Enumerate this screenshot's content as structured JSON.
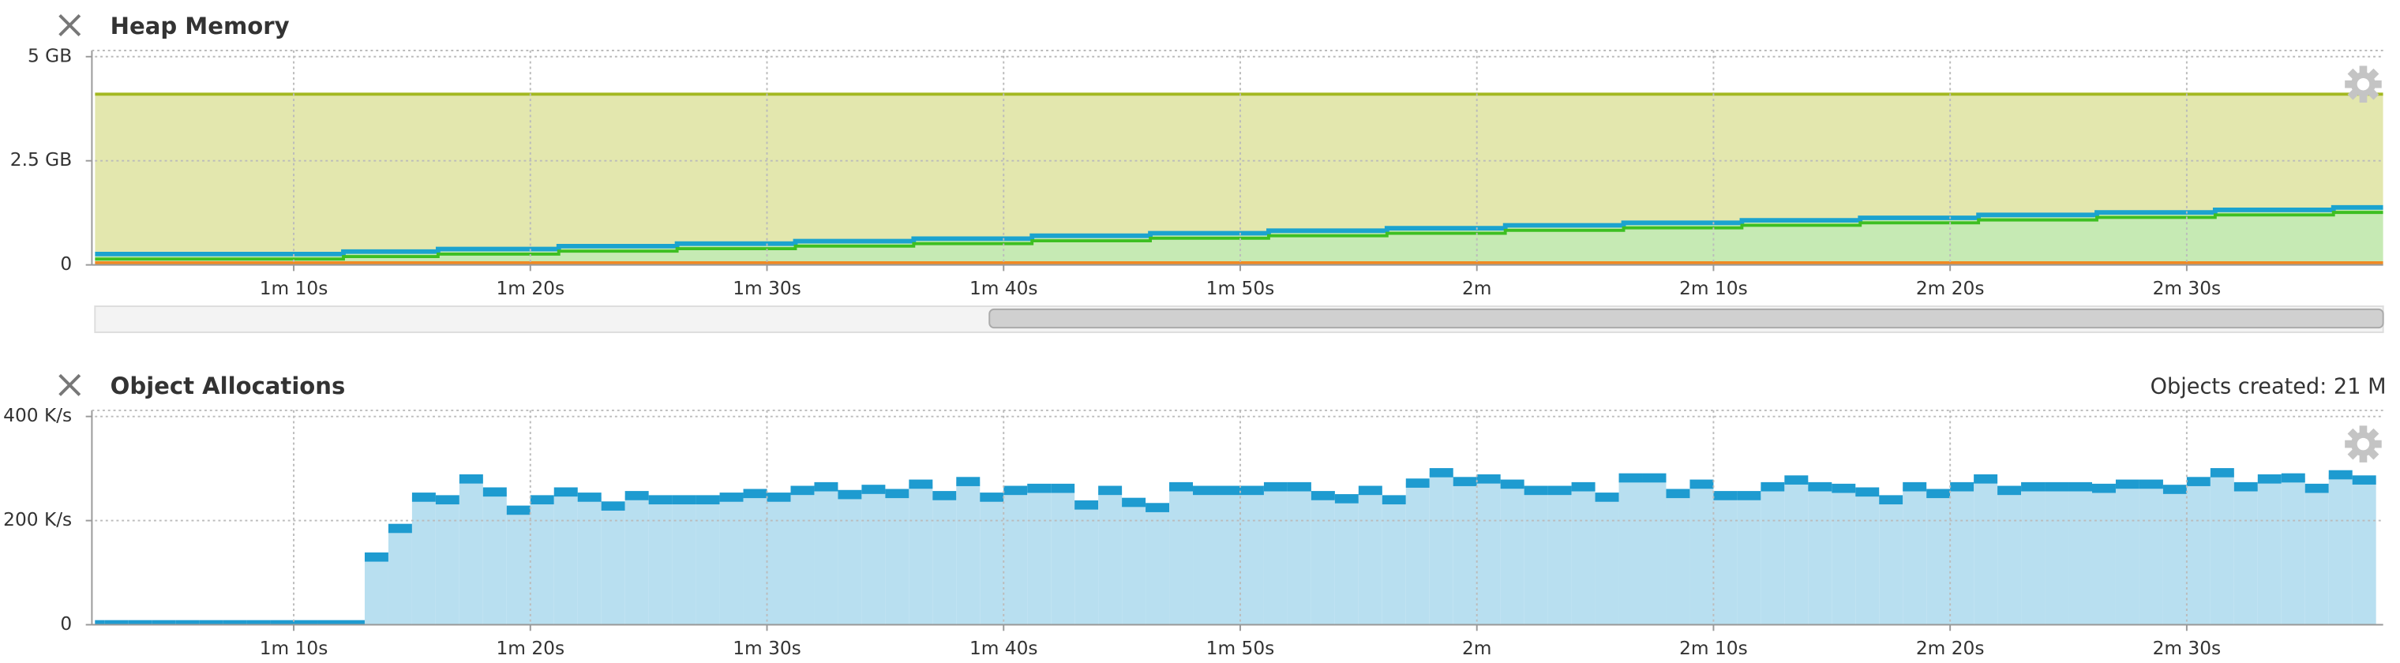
{
  "chart_data": [
    {
      "type": "step-area",
      "title": "Heap Memory",
      "x": [
        61.6,
        72.1,
        76.1,
        81.2,
        86.2,
        91.2,
        96.2,
        101.2,
        106.2,
        111.2,
        116.2,
        121.2,
        126.2,
        131.2,
        136.2,
        141.2,
        146.2,
        151.2,
        156.2,
        158.3
      ],
      "series": [
        {
          "color": "#a3b821",
          "area_color": "#e3e7ae",
          "values": [
            4.1,
            4.1,
            4.1,
            4.1,
            4.1,
            4.1,
            4.1,
            4.1,
            4.1,
            4.1,
            4.1,
            4.1,
            4.1,
            4.1,
            4.1,
            4.1,
            4.1,
            4.1,
            4.1,
            4.1
          ]
        },
        {
          "color": "#1ba3cf",
          "area_color": "#c6eab4",
          "values": [
            0.26,
            0.32,
            0.38,
            0.45,
            0.51,
            0.57,
            0.63,
            0.7,
            0.76,
            0.82,
            0.88,
            0.95,
            1.01,
            1.07,
            1.13,
            1.2,
            1.26,
            1.32,
            1.38,
            1.38
          ]
        },
        {
          "color": "#3dbf22",
          "values": [
            0.14,
            0.2,
            0.26,
            0.33,
            0.39,
            0.45,
            0.51,
            0.58,
            0.64,
            0.7,
            0.76,
            0.83,
            0.89,
            0.95,
            1.01,
            1.08,
            1.14,
            1.2,
            1.26,
            1.26
          ]
        },
        {
          "color": "#f08a24",
          "values": [
            0.05,
            0.05,
            0.05,
            0.05,
            0.05,
            0.05,
            0.05,
            0.05,
            0.05,
            0.05,
            0.05,
            0.05,
            0.05,
            0.05,
            0.05,
            0.05,
            0.05,
            0.05,
            0.05,
            0.05
          ]
        }
      ],
      "xlim": [
        61.6,
        158.3
      ],
      "xticks": [
        {
          "value": 70,
          "label": "1m 10s"
        },
        {
          "value": 80,
          "label": "1m 20s"
        },
        {
          "value": 90,
          "label": "1m 30s"
        },
        {
          "value": 100,
          "label": "1m 40s"
        },
        {
          "value": 110,
          "label": "1m 50s"
        },
        {
          "value": 120,
          "label": "2m"
        },
        {
          "value": 130,
          "label": "2m 10s"
        },
        {
          "value": 140,
          "label": "2m 20s"
        },
        {
          "value": 150,
          "label": "2m 30s"
        }
      ],
      "ylim": [
        0,
        5
      ],
      "yticks": [
        0,
        {
          "value": 2.5,
          "label": "2.5 GB"
        },
        {
          "value": 5,
          "label": "5 GB"
        }
      ],
      "grid": true
    },
    {
      "type": "histogram",
      "title": "Object Allocations",
      "summary": "Objects created: 21 M",
      "bins": [
        61,
        62,
        63,
        64,
        65,
        66,
        67,
        68,
        69,
        70,
        71,
        72,
        73,
        74,
        75,
        76,
        77,
        78,
        79,
        80,
        81,
        82,
        83,
        84,
        85,
        86,
        87,
        88,
        89,
        90,
        91,
        92,
        93,
        94,
        95,
        96,
        97,
        98,
        99,
        100,
        101,
        102,
        103,
        104,
        105,
        106,
        107,
        108,
        109,
        110,
        111,
        112,
        113,
        114,
        115,
        116,
        117,
        118,
        119,
        120,
        121,
        122,
        123,
        124,
        125,
        126,
        127,
        128,
        129,
        130,
        131,
        132,
        133,
        134,
        135,
        136,
        137,
        138,
        139,
        140,
        141,
        142,
        143,
        144,
        145,
        146,
        147,
        148,
        149,
        150,
        151,
        152,
        153,
        154,
        155,
        156,
        157,
        158
      ],
      "values": [
        0,
        0,
        0,
        0,
        0,
        0,
        0,
        0,
        0,
        0,
        0,
        0,
        130,
        185,
        245,
        240,
        280,
        255,
        220,
        240,
        255,
        245,
        228,
        248,
        240,
        240,
        240,
        245,
        252,
        245,
        258,
        265,
        250,
        260,
        252,
        270,
        248,
        275,
        245,
        258,
        262,
        262,
        230,
        258,
        235,
        225,
        265,
        258,
        258,
        258,
        265,
        265,
        248,
        242,
        258,
        240,
        272,
        292,
        275,
        280,
        270,
        258,
        258,
        265,
        245,
        282,
        282,
        252,
        270,
        248,
        248,
        265,
        278,
        265,
        262,
        255,
        240,
        265,
        252,
        265,
        280,
        258,
        265,
        265,
        265,
        262,
        270,
        270,
        260,
        275,
        292,
        265,
        280,
        282,
        262,
        288,
        278
      ],
      "color": "#b8dff0",
      "cap_color": "#1e9bd0",
      "xlim": [
        61.6,
        158.3
      ],
      "xticks": [
        {
          "value": 70,
          "label": "1m 10s"
        },
        {
          "value": 80,
          "label": "1m 20s"
        },
        {
          "value": 90,
          "label": "1m 30s"
        },
        {
          "value": 100,
          "label": "1m 40s"
        },
        {
          "value": 110,
          "label": "1m 50s"
        },
        {
          "value": 120,
          "label": "2m"
        },
        {
          "value": 130,
          "label": "2m 10s"
        },
        {
          "value": 140,
          "label": "2m 20s"
        },
        {
          "value": 150,
          "label": "2m 30s"
        }
      ],
      "ylim": [
        0,
        400
      ],
      "yticks": [
        0,
        {
          "value": 200,
          "label": "200 K/s"
        },
        {
          "value": 400,
          "label": "400 K/s"
        }
      ],
      "grid": true
    }
  ]
}
